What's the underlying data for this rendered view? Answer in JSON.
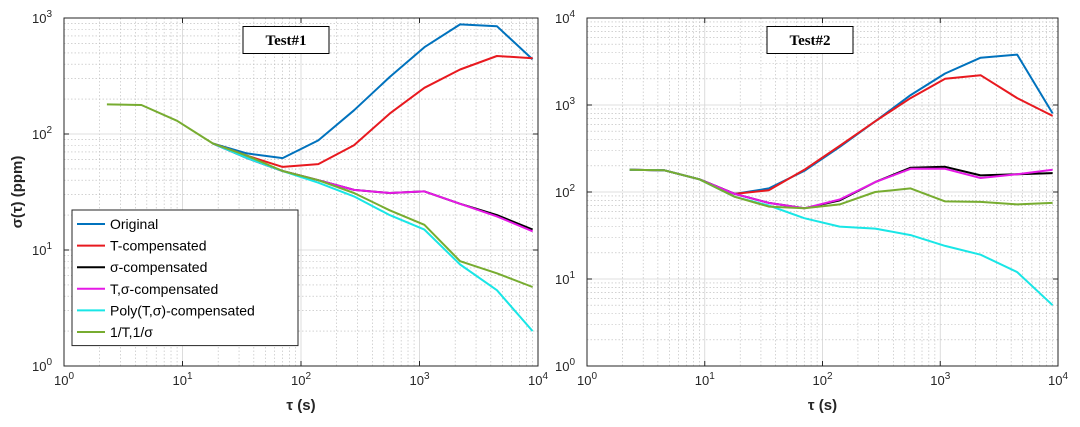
{
  "chart_data": [
    {
      "type": "line",
      "title": "Test#1",
      "xlabel": "τ (s)",
      "ylabel": "σ(τ) (ppm)",
      "xscale": "log",
      "yscale": "log",
      "xlim": [
        1,
        10000
      ],
      "ylim": [
        1,
        1000
      ],
      "xticks": [
        1,
        10,
        100,
        1000,
        10000
      ],
      "xtick_labels": [
        {
          "base": "10",
          "exp": "0"
        },
        {
          "base": "10",
          "exp": "1"
        },
        {
          "base": "10",
          "exp": "2"
        },
        {
          "base": "10",
          "exp": "3"
        },
        {
          "base": "10",
          "exp": "4"
        }
      ],
      "yticks": [
        1,
        10,
        100,
        1000
      ],
      "ytick_labels": [
        {
          "base": "10",
          "exp": "0"
        },
        {
          "base": "10",
          "exp": "1"
        },
        {
          "base": "10",
          "exp": "2"
        },
        {
          "base": "10",
          "exp": "3"
        }
      ],
      "grid": true,
      "legend": "bottom-left",
      "series": [
        {
          "name": "Original",
          "color": "#0072bd",
          "x": [
            18,
            35,
            70,
            140,
            280,
            560,
            1100,
            2200,
            4500,
            9000
          ],
          "y": [
            83,
            68,
            62,
            88,
            160,
            310,
            560,
            880,
            850,
            440
          ]
        },
        {
          "name": "T-compensated",
          "color": "#e8191f",
          "x": [
            18,
            35,
            70,
            140,
            280,
            560,
            1100,
            2200,
            4500,
            9000
          ],
          "y": [
            83,
            65,
            52,
            55,
            80,
            150,
            250,
            360,
            470,
            450
          ]
        },
        {
          "name": "σ-compensated",
          "color": "#000000",
          "x": [
            18,
            35,
            70,
            140,
            280,
            560,
            1100,
            2200,
            4500,
            9000
          ],
          "y": [
            83,
            62,
            48,
            40,
            33,
            31,
            32,
            25,
            20,
            15
          ]
        },
        {
          "name": "T,σ-compensated",
          "color": "#e619e6",
          "x": [
            18,
            35,
            70,
            140,
            280,
            560,
            1100,
            2200,
            4500,
            9000
          ],
          "y": [
            83,
            62,
            48,
            40,
            33,
            31,
            32,
            25,
            19.5,
            14.5
          ]
        },
        {
          "name": "Poly(T,σ)-compensated",
          "color": "#19e6e6",
          "x": [
            18,
            35,
            70,
            140,
            280,
            560,
            1100,
            2200,
            4500,
            9000
          ],
          "y": [
            83,
            62,
            48,
            38,
            29,
            20,
            15,
            7.5,
            4.5,
            2.0
          ]
        },
        {
          "name": "1/T,1/σ",
          "color": "#77ac30",
          "x": [
            2.3,
            4.5,
            9,
            18,
            35,
            70,
            140,
            280,
            560,
            1100,
            2200,
            4500,
            9000
          ],
          "y": [
            180,
            178,
            130,
            83,
            65,
            48,
            40,
            31,
            22,
            16.5,
            8,
            6.3,
            4.8
          ]
        }
      ]
    },
    {
      "type": "line",
      "title": "Test#2",
      "xlabel": "τ (s)",
      "ylabel": "",
      "xscale": "log",
      "yscale": "log",
      "xlim": [
        1,
        10000
      ],
      "ylim": [
        1,
        10000
      ],
      "xticks": [
        1,
        10,
        100,
        1000,
        10000
      ],
      "xtick_labels": [
        {
          "base": "10",
          "exp": "0"
        },
        {
          "base": "10",
          "exp": "1"
        },
        {
          "base": "10",
          "exp": "2"
        },
        {
          "base": "10",
          "exp": "3"
        },
        {
          "base": "10",
          "exp": "4"
        }
      ],
      "yticks": [
        1,
        10,
        100,
        1000,
        10000
      ],
      "ytick_labels": [
        {
          "base": "10",
          "exp": "0"
        },
        {
          "base": "10",
          "exp": "1"
        },
        {
          "base": "10",
          "exp": "2"
        },
        {
          "base": "10",
          "exp": "3"
        },
        {
          "base": "10",
          "exp": "4"
        }
      ],
      "grid": true,
      "legend": "none",
      "series": [
        {
          "name": "Original",
          "color": "#0072bd",
          "x": [
            2.3,
            4.5,
            9,
            18,
            35,
            70,
            140,
            280,
            560,
            1100,
            2200,
            4500,
            9000
          ],
          "y": [
            180,
            178,
            140,
            95,
            110,
            175,
            330,
            650,
            1300,
            2300,
            3500,
            3800,
            800
          ]
        },
        {
          "name": "T-compensated",
          "color": "#e8191f",
          "x": [
            2.3,
            4.5,
            9,
            18,
            35,
            70,
            140,
            280,
            560,
            1100,
            2200,
            4500,
            9000
          ],
          "y": [
            180,
            178,
            140,
            95,
            105,
            180,
            340,
            650,
            1200,
            2000,
            2200,
            1200,
            750
          ]
        },
        {
          "name": "σ-compensated",
          "color": "#000000",
          "x": [
            2.3,
            4.5,
            9,
            18,
            35,
            70,
            140,
            280,
            560,
            1100,
            2200,
            4500,
            9000
          ],
          "y": [
            180,
            178,
            140,
            95,
            75,
            65,
            80,
            130,
            190,
            195,
            155,
            160,
            165
          ]
        },
        {
          "name": "T,σ-compensated",
          "color": "#e619e6",
          "x": [
            2.3,
            4.5,
            9,
            18,
            35,
            70,
            140,
            280,
            560,
            1100,
            2200,
            4500,
            9000
          ],
          "y": [
            180,
            178,
            140,
            95,
            75,
            65,
            82,
            130,
            185,
            185,
            145,
            160,
            180
          ]
        },
        {
          "name": "Poly(T,σ)-compensated",
          "color": "#19e6e6",
          "x": [
            2.3,
            4.5,
            9,
            18,
            35,
            70,
            140,
            280,
            560,
            1100,
            2200,
            4500,
            9000
          ],
          "y": [
            180,
            178,
            140,
            88,
            70,
            50,
            40,
            38,
            32,
            24,
            19,
            12,
            5
          ]
        },
        {
          "name": "1/T,1/σ",
          "color": "#77ac30",
          "x": [
            2.3,
            4.5,
            9,
            18,
            35,
            70,
            140,
            280,
            560,
            1100,
            2200,
            4500,
            9000
          ],
          "y": [
            180,
            178,
            140,
            88,
            68,
            65,
            72,
            100,
            110,
            78,
            77,
            72,
            75
          ]
        }
      ]
    }
  ]
}
